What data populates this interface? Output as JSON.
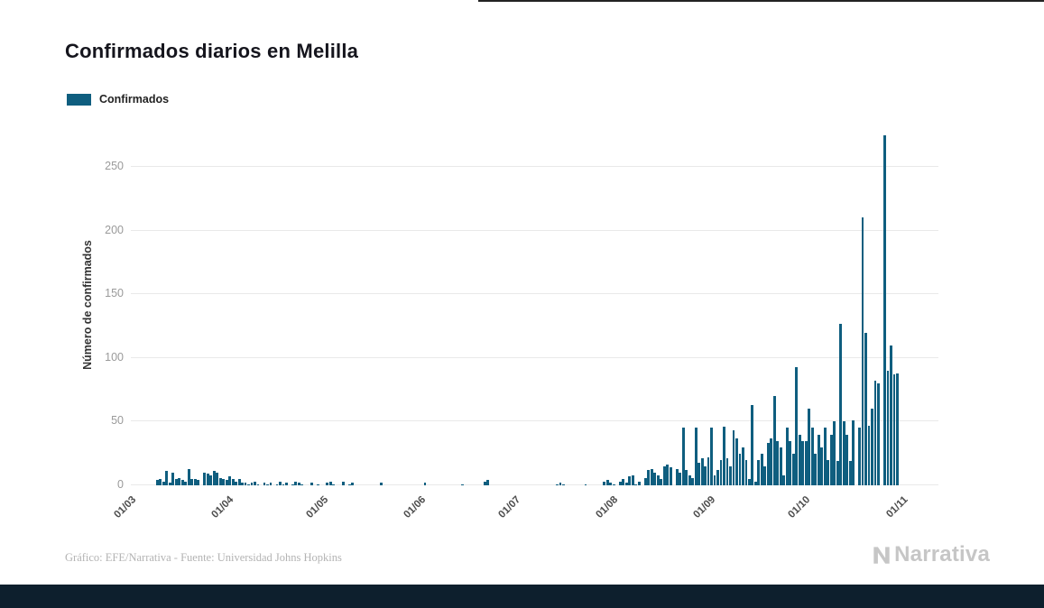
{
  "page": {
    "title": "Confirmados diarios en Melilla",
    "footer_credit": "Gráfico: EFE/Narrativa - Fuente: Universidad Johns Hopkins",
    "brand": "Narrativa"
  },
  "legend": {
    "label": "Confirmados",
    "color": "#0f5e7f"
  },
  "chart_data": {
    "type": "bar",
    "title": "Confirmados diarios en Melilla",
    "series_name": "Confirmados",
    "xlabel": "",
    "ylabel": "Número de confirmados",
    "bar_color": "#0f5e7f",
    "grid": true,
    "legend_position": "top-left",
    "ylim": [
      0,
      280
    ],
    "y_ticks": [
      0,
      50,
      100,
      150,
      200,
      250
    ],
    "x_tick_labels": [
      "01/03",
      "01/04",
      "01/05",
      "01/06",
      "01/07",
      "01/08",
      "01/09",
      "01/10",
      "01/11"
    ],
    "x_tick_day_index": [
      0,
      31,
      61,
      92,
      122,
      153,
      184,
      214,
      245
    ],
    "values": [
      0,
      0,
      0,
      0,
      0,
      0,
      0,
      0,
      4,
      5,
      3,
      11,
      2,
      10,
      5,
      6,
      4,
      3,
      13,
      5,
      5,
      4,
      0,
      10,
      9,
      8,
      11,
      10,
      6,
      5,
      4,
      7,
      5,
      3,
      5,
      2,
      2,
      1,
      2,
      3,
      1,
      0,
      2,
      1,
      2,
      0,
      1,
      3,
      1,
      2,
      0,
      1,
      3,
      2,
      1,
      0,
      0,
      2,
      0,
      1,
      0,
      0,
      2,
      3,
      1,
      0,
      0,
      3,
      0,
      1,
      2,
      0,
      0,
      0,
      0,
      0,
      0,
      0,
      0,
      2,
      0,
      0,
      0,
      0,
      0,
      0,
      0,
      0,
      0,
      0,
      0,
      0,
      0,
      2,
      0,
      0,
      0,
      0,
      0,
      0,
      0,
      0,
      0,
      0,
      0,
      1,
      0,
      0,
      0,
      0,
      0,
      0,
      3,
      4,
      0,
      0,
      0,
      0,
      0,
      0,
      0,
      0,
      0,
      0,
      0,
      0,
      0,
      0,
      0,
      0,
      0,
      0,
      0,
      0,
      0,
      1,
      2,
      1,
      0,
      0,
      0,
      0,
      0,
      0,
      1,
      0,
      0,
      0,
      0,
      0,
      3,
      4,
      2,
      1,
      0,
      3,
      5,
      2,
      7,
      8,
      1,
      3,
      0,
      6,
      12,
      13,
      10,
      8,
      5,
      15,
      16,
      14,
      0,
      13,
      10,
      45,
      12,
      8,
      6,
      45,
      18,
      21,
      15,
      22,
      45,
      8,
      12,
      20,
      46,
      21,
      15,
      43,
      37,
      25,
      30,
      20,
      5,
      63,
      3,
      20,
      25,
      15,
      33,
      37,
      70,
      35,
      30,
      8,
      45,
      35,
      25,
      93,
      40,
      35,
      35,
      60,
      45,
      25,
      40,
      30,
      45,
      20,
      40,
      50,
      19,
      127,
      50,
      40,
      19,
      51,
      0,
      45,
      210,
      120,
      47,
      60,
      82,
      80,
      0,
      275,
      90,
      110,
      87,
      88,
      0
    ]
  }
}
